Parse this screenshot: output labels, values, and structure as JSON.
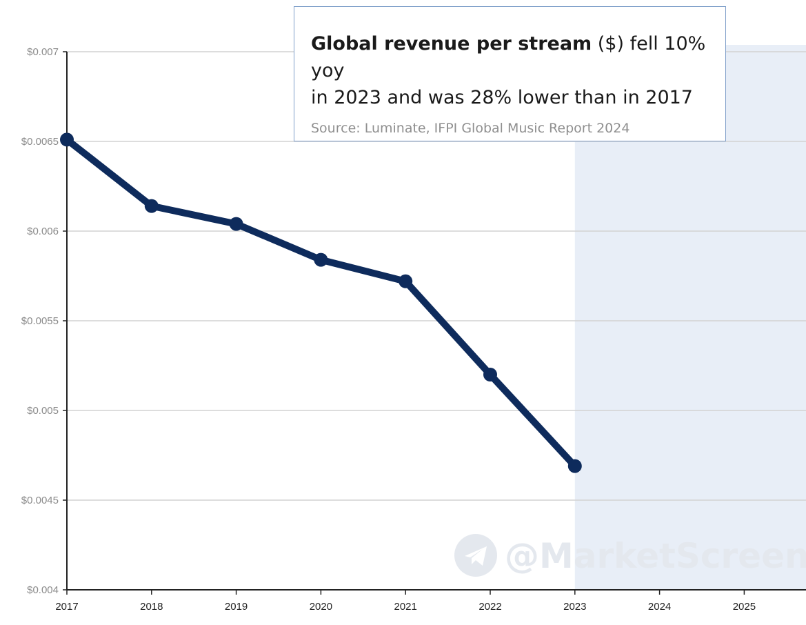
{
  "chart_data": {
    "type": "line",
    "title": {
      "bold": "Global revenue per stream",
      "rest_line1": " ($) fell 10% yoy",
      "line2": "in 2023 and was 28% lower than in 2017"
    },
    "source": "Source: Luminate, IFPI Global Music Report 2024",
    "watermark": "@MarketScreen",
    "x_ticks": [
      "2017",
      "2018",
      "2019",
      "2020",
      "2021",
      "2022",
      "2023",
      "2024",
      "2025"
    ],
    "y_ticks": [
      {
        "value": 0.007,
        "label": "$0.007"
      },
      {
        "value": 0.0065,
        "label": "$0.0065"
      },
      {
        "value": 0.006,
        "label": "$0.006"
      },
      {
        "value": 0.0055,
        "label": "$0.0055"
      },
      {
        "value": 0.005,
        "label": "$0.005"
      },
      {
        "value": 0.0045,
        "label": "$0.0045"
      },
      {
        "value": 0.004,
        "label": "$0.004"
      }
    ],
    "ylim": [
      0.004,
      0.007
    ],
    "series": [
      {
        "name": "Global revenue per stream",
        "color": "#0e2b5c",
        "x": [
          2017,
          2018,
          2019,
          2020,
          2021,
          2022,
          2023
        ],
        "values": [
          0.00651,
          0.00614,
          0.00604,
          0.00584,
          0.00572,
          0.0052,
          0.00469
        ]
      }
    ],
    "forecast_shading": {
      "from": 2023,
      "to": 2026,
      "color": "#e8eef7"
    },
    "xlabel": "",
    "ylabel": ""
  }
}
